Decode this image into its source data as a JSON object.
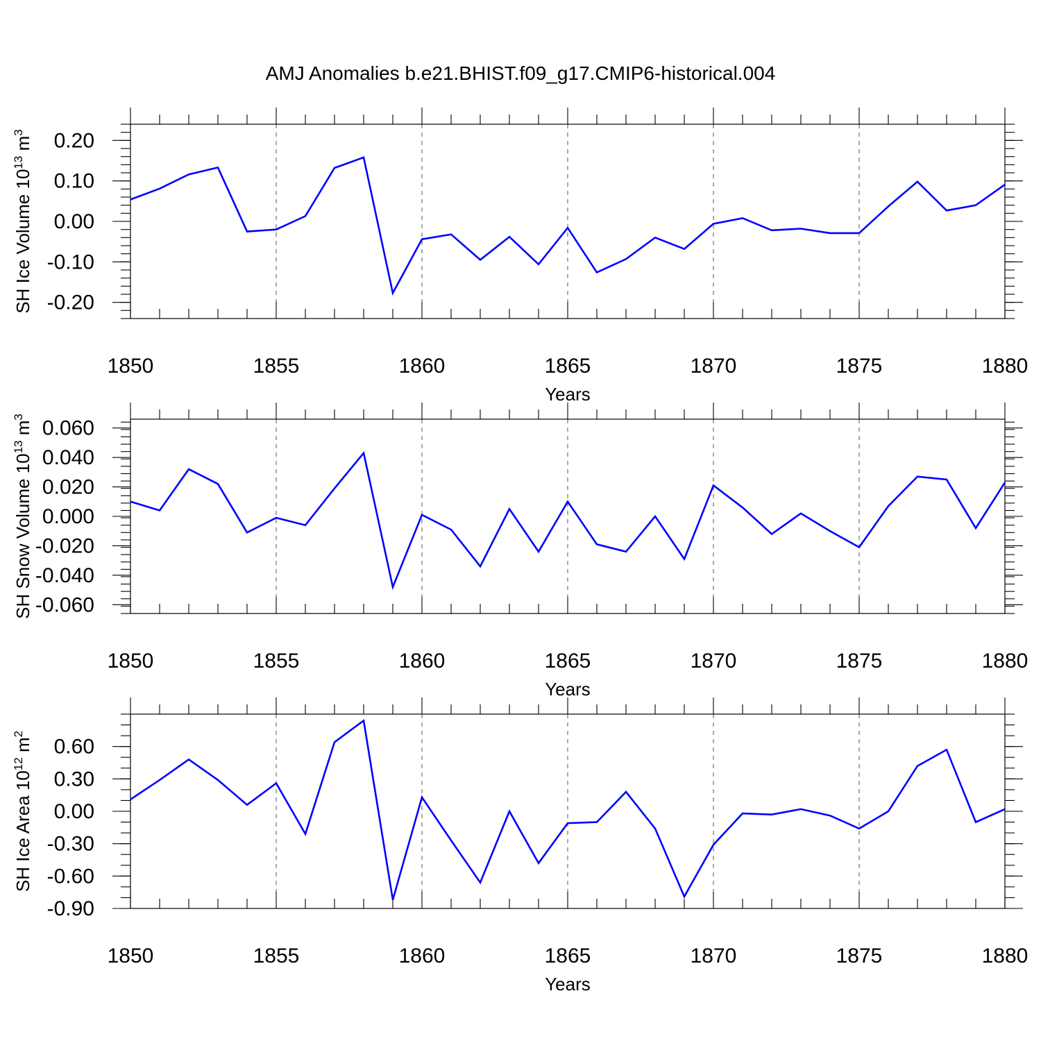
{
  "title": "AMJ Anomalies b.e21.BHIST.f09_g17.CMIP6-historical.004",
  "chart_data": [
    {
      "type": "line",
      "ylabel": "SH Ice Volume 10",
      "ylabel_exp": "13",
      "ylabel_unit": " m",
      "ylabel_unit_exp": "3",
      "xlabel": "Years",
      "xlim": [
        1850,
        1880
      ],
      "ylim": [
        -0.24,
        0.24
      ],
      "xticks": [
        1850,
        1855,
        1860,
        1865,
        1870,
        1875,
        1880
      ],
      "xtick_labels": [
        "1850",
        "1855",
        "1860",
        "1865",
        "1870",
        "1875",
        "1880"
      ],
      "yticks": [
        -0.2,
        -0.1,
        0.0,
        0.1,
        0.2
      ],
      "ytick_labels": [
        "-0.20",
        "-0.10",
        "0.00",
        "0.10",
        "0.20"
      ],
      "yminor_step": 0.02,
      "grid": "dashed vertical at major x ticks",
      "x": [
        1850,
        1851,
        1852,
        1853,
        1854,
        1855,
        1856,
        1857,
        1858,
        1859,
        1860,
        1861,
        1862,
        1863,
        1864,
        1865,
        1866,
        1867,
        1868,
        1869,
        1870,
        1871,
        1872,
        1873,
        1874,
        1875,
        1876,
        1877,
        1878,
        1879,
        1880
      ],
      "y": [
        0.054,
        0.081,
        0.116,
        0.133,
        -0.025,
        -0.02,
        0.013,
        0.132,
        0.158,
        -0.177,
        -0.044,
        -0.032,
        -0.095,
        -0.038,
        -0.106,
        -0.016,
        -0.126,
        -0.093,
        -0.04,
        -0.068,
        -0.006,
        0.008,
        -0.022,
        -0.018,
        -0.029,
        -0.029,
        0.037,
        0.098,
        0.027,
        0.04,
        0.091
      ]
    },
    {
      "type": "line",
      "ylabel": "SH Snow Volume 10",
      "ylabel_exp": "13",
      "ylabel_unit": " m",
      "ylabel_unit_exp": "3",
      "xlabel": "Years",
      "xlim": [
        1850,
        1880
      ],
      "ylim": [
        -0.066,
        0.066
      ],
      "xticks": [
        1850,
        1855,
        1860,
        1865,
        1870,
        1875,
        1880
      ],
      "xtick_labels": [
        "1850",
        "1855",
        "1860",
        "1865",
        "1870",
        "1875",
        "1880"
      ],
      "yticks": [
        -0.06,
        -0.04,
        -0.02,
        0.0,
        0.02,
        0.04,
        0.06
      ],
      "ytick_labels": [
        "-0.060",
        "-0.040",
        "-0.020",
        "0.000",
        "0.020",
        "0.040",
        "0.060"
      ],
      "yminor_step": 0.005,
      "grid": "dashed vertical at major x ticks",
      "x": [
        1850,
        1851,
        1852,
        1853,
        1854,
        1855,
        1856,
        1857,
        1858,
        1859,
        1860,
        1861,
        1862,
        1863,
        1864,
        1865,
        1866,
        1867,
        1868,
        1869,
        1870,
        1871,
        1872,
        1873,
        1874,
        1875,
        1876,
        1877,
        1878,
        1879,
        1880
      ],
      "y": [
        0.01,
        0.004,
        0.032,
        0.022,
        -0.011,
        -0.001,
        -0.006,
        0.019,
        0.043,
        -0.048,
        0.001,
        -0.009,
        -0.034,
        0.005,
        -0.024,
        0.01,
        -0.019,
        -0.024,
        0.0,
        -0.029,
        0.021,
        0.006,
        -0.012,
        0.002,
        -0.01,
        -0.021,
        0.007,
        0.027,
        0.025,
        -0.008,
        0.023
      ]
    },
    {
      "type": "line",
      "ylabel": "SH Ice Area 10",
      "ylabel_exp": "12",
      "ylabel_unit": " m",
      "ylabel_unit_exp": "2",
      "xlabel": "Years",
      "xlim": [
        1850,
        1880
      ],
      "ylim": [
        -0.9,
        0.9
      ],
      "xticks": [
        1850,
        1855,
        1860,
        1865,
        1870,
        1875,
        1880
      ],
      "xtick_labels": [
        "1850",
        "1855",
        "1860",
        "1865",
        "1870",
        "1875",
        "1880"
      ],
      "yticks": [
        -0.9,
        -0.6,
        -0.3,
        0.0,
        0.3,
        0.6
      ],
      "ytick_labels": [
        "-0.90",
        "-0.60",
        "-0.30",
        "0.00",
        "0.30",
        "0.60"
      ],
      "yminor_step": 0.1,
      "grid": "dashed vertical at major x ticks",
      "x": [
        1850,
        1851,
        1852,
        1853,
        1854,
        1855,
        1856,
        1857,
        1858,
        1859,
        1860,
        1861,
        1862,
        1863,
        1864,
        1865,
        1866,
        1867,
        1868,
        1869,
        1870,
        1871,
        1872,
        1873,
        1874,
        1875,
        1876,
        1877,
        1878,
        1879,
        1880
      ],
      "y": [
        0.11,
        0.29,
        0.48,
        0.29,
        0.06,
        0.26,
        -0.21,
        0.64,
        0.84,
        -0.82,
        0.13,
        -0.27,
        -0.66,
        0.0,
        -0.48,
        -0.11,
        -0.1,
        0.18,
        -0.16,
        -0.79,
        -0.31,
        -0.02,
        -0.03,
        0.02,
        -0.04,
        -0.16,
        0.0,
        0.42,
        0.57,
        -0.1,
        0.02
      ]
    }
  ]
}
